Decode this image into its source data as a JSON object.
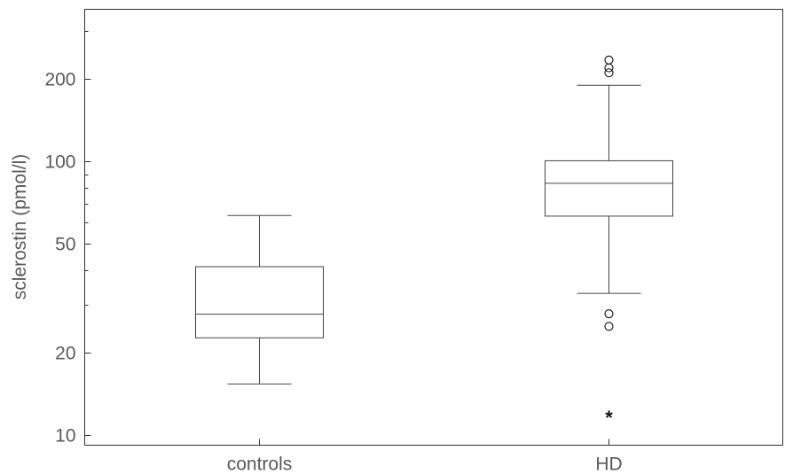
{
  "chart_data": {
    "type": "box",
    "title": "",
    "xlabel": "",
    "ylabel": "sclerostin (pmol/l)",
    "y_scale": "log",
    "ylim": [
      9.2,
      360
    ],
    "y_ticks": [
      10,
      20,
      50,
      100,
      200
    ],
    "y_minor_ticks": [
      30,
      40,
      60,
      70,
      80,
      90,
      300
    ],
    "grid": false,
    "categories": [
      "controls",
      "HD"
    ],
    "boxes": [
      {
        "category": "controls",
        "whisker_low": 15.4,
        "q1": 22.7,
        "median": 27.7,
        "q3": 41.3,
        "whisker_high": 63.5,
        "outliers": [],
        "extremes": []
      },
      {
        "category": "HD",
        "whisker_low": 33.0,
        "q1": 63.2,
        "median": 83.3,
        "q3": 100.7,
        "whisker_high": 190,
        "outliers": [
          25.0,
          27.8,
          211,
          220,
          235
        ],
        "extremes": [
          11.8
        ]
      }
    ]
  }
}
